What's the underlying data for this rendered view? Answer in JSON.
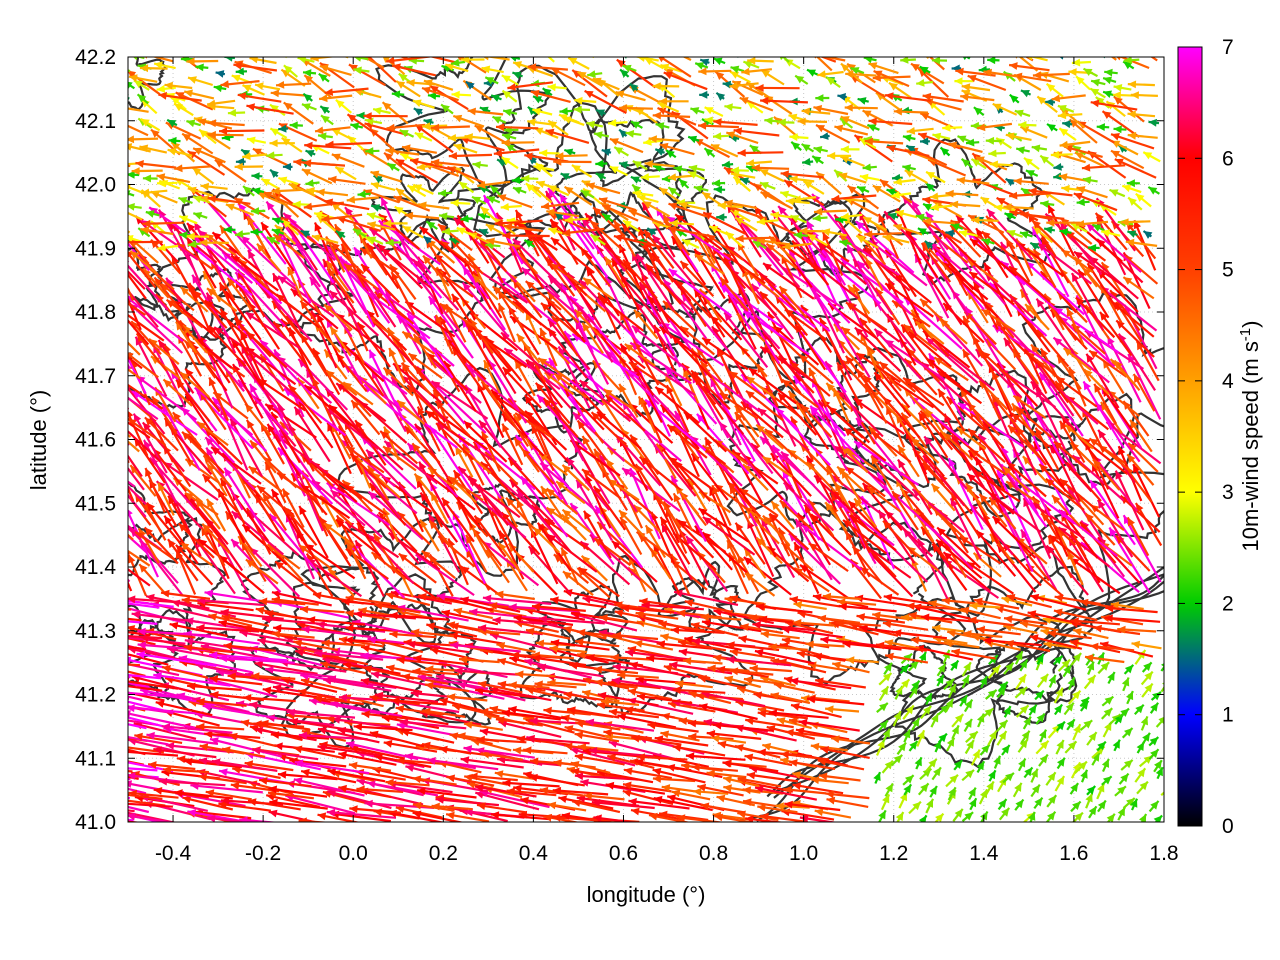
{
  "chart_data": {
    "type": "vector-field",
    "title": "",
    "xlabel": "longitude (°)",
    "ylabel": "latitude (°)",
    "xlim": [
      -0.5,
      1.8
    ],
    "ylim": [
      41.0,
      42.2
    ],
    "xticks": [
      -0.4,
      -0.2,
      0.0,
      0.2,
      0.4,
      0.6,
      0.8,
      1.0,
      1.2,
      1.4,
      1.6,
      1.8
    ],
    "xtick_labels": [
      "-0.4",
      "-0.2",
      "0.0",
      "0.2",
      "0.4",
      "0.6",
      "0.8",
      "1.0",
      "1.2",
      "1.4",
      "1.6",
      "1.8"
    ],
    "yticks": [
      41.0,
      41.1,
      41.2,
      41.3,
      41.4,
      41.5,
      41.6,
      41.7,
      41.8,
      41.9,
      42.0,
      42.1,
      42.2
    ],
    "ytick_labels": [
      "41.0",
      "41.1",
      "41.2",
      "41.3",
      "41.4",
      "41.5",
      "41.6",
      "41.7",
      "41.8",
      "41.9",
      "42.0",
      "42.1",
      "42.2"
    ],
    "grid": true,
    "colorbar": {
      "label": "10m-wind speed (m s-1)",
      "label_main": "10m-wind speed (m s",
      "label_sup": "-1",
      "label_end": ")",
      "range": [
        0,
        7
      ],
      "ticks": [
        0,
        1,
        2,
        3,
        4,
        5,
        6,
        7
      ],
      "tick_labels": [
        "0",
        "1",
        "2",
        "3",
        "4",
        "5",
        "6",
        "7"
      ],
      "colormap": [
        "#000000",
        "#0000ff",
        "#00cc00",
        "#ffff00",
        "#ffa000",
        "#ff0000",
        "#ff00ff"
      ]
    },
    "wind_regions": [
      {
        "region": "west, lat 41.0-41.35",
        "direction": "westward",
        "speed": 6.5
      },
      {
        "region": "central, lat 41.4-41.9",
        "direction": "northwestward",
        "speed": 5.5
      },
      {
        "region": "north, lat 41.9-42.2",
        "direction": "westward",
        "speed": 3.5
      },
      {
        "region": "southeast, lon 1.2-1.8, lat 41.0-41.25",
        "direction": "northeastward",
        "speed": 2.2
      }
    ],
    "contour_color": "#333333"
  }
}
